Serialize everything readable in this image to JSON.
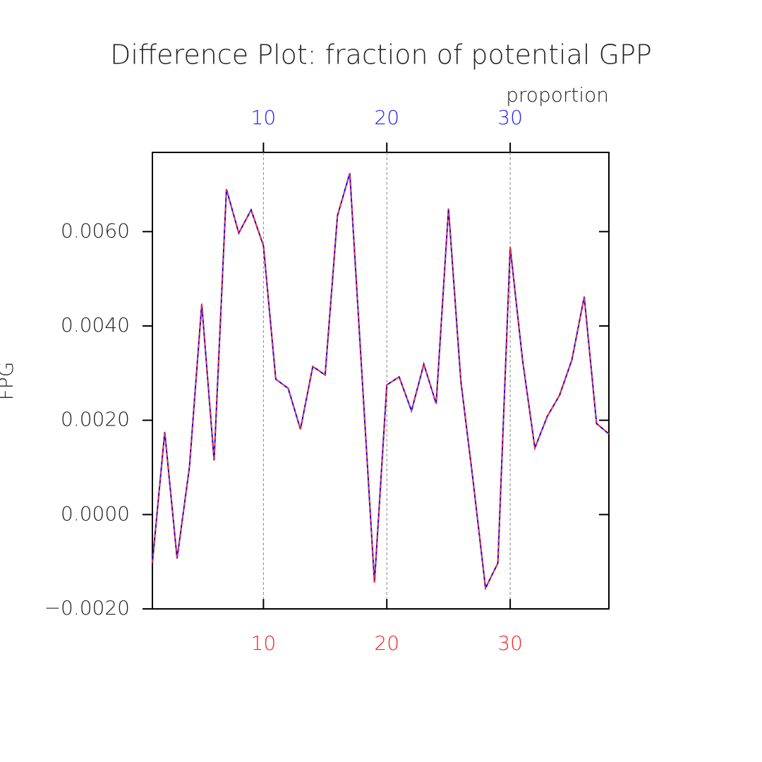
{
  "chart_data": {
    "type": "line",
    "title": "Difference Plot: fraction of potential GPP",
    "y_label": "FPG",
    "x2_label": "proportion",
    "x": [
      1,
      2,
      3,
      4,
      5,
      6,
      7,
      8,
      9,
      10,
      11,
      12,
      13,
      14,
      15,
      16,
      17,
      18,
      19,
      20,
      21,
      22,
      23,
      24,
      25,
      26,
      27,
      28,
      29,
      30,
      31,
      32,
      33,
      34,
      35,
      36,
      37,
      38
    ],
    "series": [
      {
        "color": "#0000ff",
        "dash": false,
        "values": [
          -0.00102,
          0.00175,
          -0.00093,
          0.001,
          0.00447,
          0.00115,
          0.0069,
          0.00597,
          0.00646,
          0.0057,
          0.00287,
          0.00268,
          0.00181,
          0.00314,
          0.00296,
          0.00634,
          0.00724,
          0.0029,
          -0.00144,
          0.00275,
          0.00292,
          0.0022,
          0.00319,
          0.00235,
          0.00649,
          0.00283,
          0.0007,
          -0.00156,
          -0.00103,
          0.00567,
          0.00328,
          0.00141,
          0.00208,
          0.00253,
          0.00328,
          0.00462,
          0.00193,
          0.00171
        ]
      },
      {
        "color": "#ff3030",
        "dash": true,
        "values": [
          -0.00102,
          0.00175,
          -0.00093,
          0.001,
          0.00447,
          0.00115,
          0.0069,
          0.00597,
          0.00646,
          0.0057,
          0.00287,
          0.00268,
          0.00181,
          0.00314,
          0.00296,
          0.00634,
          0.00724,
          0.0029,
          -0.00144,
          0.00275,
          0.00292,
          0.0022,
          0.00319,
          0.00235,
          0.00649,
          0.00283,
          0.0007,
          -0.00156,
          -0.00103,
          0.00567,
          0.00328,
          0.00141,
          0.00208,
          0.00253,
          0.00328,
          0.00462,
          0.00193,
          0.00171
        ]
      }
    ],
    "xlim": [
      1,
      38
    ],
    "xticks": [
      10,
      20,
      30
    ],
    "ylim": [
      -0.002,
      0.00768
    ],
    "yticks": [
      {
        "value": -0.002,
        "label": "−0.0020"
      },
      {
        "value": 0,
        "label": "0.0000"
      },
      {
        "value": 0.002,
        "label": "0.0020"
      },
      {
        "value": 0.004,
        "label": "0.0040"
      },
      {
        "value": 0.006,
        "label": "0.0060"
      }
    ],
    "grid": true,
    "top_axis_color": "#2020ff",
    "bottom_axis_color": "#ff2020"
  }
}
